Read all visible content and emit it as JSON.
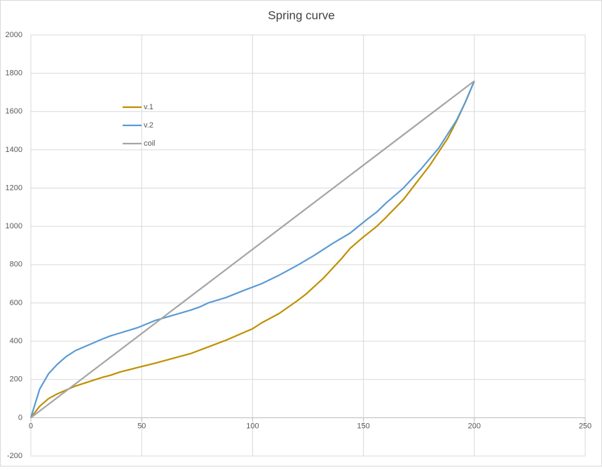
{
  "chart_data": {
    "type": "line",
    "title": "Spring curve",
    "xlim": [
      0,
      250
    ],
    "xticks": [
      0,
      50,
      100,
      150,
      200,
      250
    ],
    "ylim": [
      -200,
      2000
    ],
    "yticks": [
      -200,
      0,
      200,
      400,
      600,
      800,
      1000,
      1200,
      1400,
      1600,
      1800,
      2000
    ],
    "grid": true,
    "legend": "upper left",
    "series": [
      {
        "name": "v.1",
        "color": "#bf9000",
        "x": [
          0,
          4,
          8,
          12,
          16,
          20,
          24,
          28,
          32,
          36,
          40,
          48,
          56,
          64,
          72,
          80,
          88,
          96,
          100,
          104,
          112,
          120,
          124,
          132,
          140,
          144,
          150,
          156,
          160,
          168,
          176,
          180,
          188,
          192,
          196,
          200
        ],
        "values": [
          0,
          60,
          100,
          125,
          145,
          165,
          180,
          195,
          210,
          222,
          238,
          262,
          285,
          310,
          335,
          370,
          405,
          445,
          465,
          495,
          545,
          610,
          645,
          730,
          830,
          885,
          945,
          1000,
          1045,
          1140,
          1260,
          1320,
          1460,
          1550,
          1650,
          1760
        ]
      },
      {
        "name": "v.2",
        "color": "#5b9bd5",
        "x": [
          0,
          4,
          8,
          12,
          16,
          20,
          24,
          28,
          32,
          36,
          40,
          48,
          56,
          64,
          72,
          76,
          80,
          88,
          96,
          104,
          112,
          120,
          128,
          136,
          144,
          152,
          156,
          160,
          168,
          176,
          184,
          192,
          196,
          200
        ],
        "values": [
          0,
          150,
          230,
          280,
          320,
          350,
          370,
          390,
          410,
          428,
          442,
          470,
          508,
          535,
          562,
          578,
          600,
          628,
          665,
          700,
          745,
          795,
          850,
          910,
          965,
          1040,
          1075,
          1120,
          1200,
          1300,
          1410,
          1555,
          1650,
          1760
        ]
      },
      {
        "name": "coil",
        "color": "#a5a5a5",
        "x": [
          0,
          200
        ],
        "values": [
          0,
          1760
        ]
      }
    ]
  }
}
